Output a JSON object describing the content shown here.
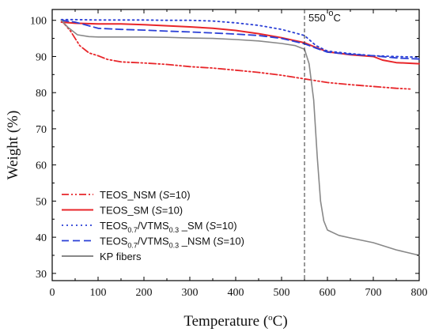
{
  "chart_data": {
    "type": "line",
    "xlabel_main": "Temperature (",
    "xlabel_sup": "o",
    "xlabel_end": "C)",
    "ylabel": "Weight (%)",
    "xlim": [
      0,
      800
    ],
    "ylim": [
      28,
      103
    ],
    "xticks": [
      0,
      100,
      200,
      300,
      400,
      500,
      600,
      700,
      800
    ],
    "yticks": [
      30,
      40,
      50,
      60,
      70,
      80,
      90,
      100
    ],
    "grid": false,
    "legend_position": "bottom-left",
    "vline": {
      "x": 550,
      "label_main": "550 ",
      "label_sup": "o",
      "label_end": "C"
    },
    "series": [
      {
        "name": "TEOS_NSM (S=10)",
        "legend_parts": [
          [
            "TEOS_NSM (",
            ""
          ],
          [
            "S",
            "italic"
          ],
          [
            "=10)",
            ""
          ]
        ],
        "color": "#e8262a",
        "dash": "dashdotdot",
        "points": [
          [
            20,
            100
          ],
          [
            40,
            97
          ],
          [
            60,
            93
          ],
          [
            80,
            91
          ],
          [
            100,
            90.2
          ],
          [
            120,
            89.2
          ],
          [
            150,
            88.5
          ],
          [
            200,
            88.2
          ],
          [
            250,
            87.8
          ],
          [
            300,
            87.2
          ],
          [
            350,
            86.8
          ],
          [
            400,
            86.2
          ],
          [
            450,
            85.6
          ],
          [
            500,
            84.8
          ],
          [
            550,
            83.8
          ],
          [
            600,
            82.8
          ],
          [
            650,
            82.2
          ],
          [
            700,
            81.7
          ],
          [
            750,
            81.2
          ],
          [
            780,
            81.0
          ]
        ]
      },
      {
        "name": "TEOS_SM (S=10)",
        "legend_parts": [
          [
            "TEOS_SM (",
            ""
          ],
          [
            "S",
            "italic"
          ],
          [
            "=10)",
            ""
          ]
        ],
        "color": "#e8262a",
        "dash": "solid",
        "points": [
          [
            20,
            99.5
          ],
          [
            50,
            99.2
          ],
          [
            100,
            99
          ],
          [
            150,
            99
          ],
          [
            200,
            98.8
          ],
          [
            250,
            98.5
          ],
          [
            300,
            98.2
          ],
          [
            350,
            97.8
          ],
          [
            400,
            97.2
          ],
          [
            450,
            96.3
          ],
          [
            500,
            95.2
          ],
          [
            550,
            93.8
          ],
          [
            575,
            92.5
          ],
          [
            600,
            91.3
          ],
          [
            650,
            90.5
          ],
          [
            700,
            90
          ],
          [
            720,
            89
          ],
          [
            750,
            88.3
          ],
          [
            800,
            88
          ]
        ]
      },
      {
        "name": "TEOS0.7/VTMS0.3_SM (S=10)",
        "legend_parts": [
          [
            "TEOS",
            ""
          ],
          [
            "0.7",
            "sub"
          ],
          [
            "/VTMS",
            ""
          ],
          [
            "0.3",
            "sub"
          ],
          [
            " _SM (",
            ""
          ],
          [
            "S",
            "italic"
          ],
          [
            "=10)",
            ""
          ]
        ],
        "color": "#2a3fd6",
        "dash": "dotted",
        "points": [
          [
            20,
            100.2
          ],
          [
            50,
            100.2
          ],
          [
            100,
            100.1
          ],
          [
            150,
            100.1
          ],
          [
            200,
            100.1
          ],
          [
            250,
            100
          ],
          [
            300,
            100
          ],
          [
            350,
            99.8
          ],
          [
            400,
            99.3
          ],
          [
            450,
            98.6
          ],
          [
            500,
            97.5
          ],
          [
            550,
            95.8
          ],
          [
            575,
            93
          ],
          [
            600,
            91.5
          ],
          [
            650,
            90.8
          ],
          [
            700,
            90.2
          ],
          [
            750,
            90
          ],
          [
            800,
            89.8
          ]
        ]
      },
      {
        "name": "TEOS0.7/VTMS0.3_NSM (S=10)",
        "legend_parts": [
          [
            "TEOS",
            ""
          ],
          [
            "0.7",
            "sub"
          ],
          [
            "/VTMS",
            ""
          ],
          [
            "0.3",
            "sub"
          ],
          [
            " _NSM (",
            ""
          ],
          [
            "S",
            "italic"
          ],
          [
            "=10)",
            ""
          ]
        ],
        "color": "#2a3fd6",
        "dash": "dashed",
        "points": [
          [
            20,
            100
          ],
          [
            50,
            99.5
          ],
          [
            80,
            98.5
          ],
          [
            100,
            97.8
          ],
          [
            150,
            97.5
          ],
          [
            200,
            97.3
          ],
          [
            250,
            97
          ],
          [
            300,
            96.8
          ],
          [
            350,
            96.5
          ],
          [
            400,
            96.2
          ],
          [
            450,
            95.8
          ],
          [
            500,
            95
          ],
          [
            550,
            93.5
          ],
          [
            575,
            92.3
          ],
          [
            600,
            91.2
          ],
          [
            650,
            90.6
          ],
          [
            700,
            90.2
          ],
          [
            750,
            89.6
          ],
          [
            800,
            89.3
          ]
        ]
      },
      {
        "name": "KP fibers",
        "legend_parts": [
          [
            "KP fibers",
            ""
          ]
        ],
        "color": "#888888",
        "dash": "solid",
        "points": [
          [
            20,
            100
          ],
          [
            35,
            98
          ],
          [
            55,
            96
          ],
          [
            80,
            95.5
          ],
          [
            100,
            95.4
          ],
          [
            150,
            95.4
          ],
          [
            200,
            95.4
          ],
          [
            250,
            95.3
          ],
          [
            300,
            95.1
          ],
          [
            350,
            95
          ],
          [
            400,
            94.7
          ],
          [
            450,
            94.3
          ],
          [
            500,
            93.6
          ],
          [
            530,
            93
          ],
          [
            550,
            92
          ],
          [
            560,
            88
          ],
          [
            570,
            78
          ],
          [
            578,
            62
          ],
          [
            585,
            50
          ],
          [
            592,
            44.5
          ],
          [
            600,
            42
          ],
          [
            625,
            40.5
          ],
          [
            650,
            39.8
          ],
          [
            700,
            38.5
          ],
          [
            750,
            36.5
          ],
          [
            800,
            35
          ]
        ]
      }
    ]
  }
}
